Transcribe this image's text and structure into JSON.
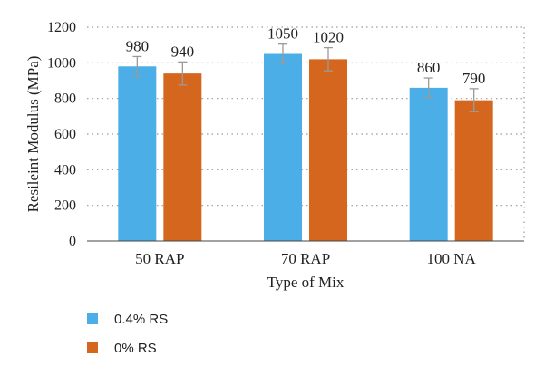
{
  "chart_data": {
    "type": "bar",
    "categories": [
      "50 RAP",
      "70 RAP",
      "100 NA"
    ],
    "series": [
      {
        "name": "0.4% RS",
        "color": "#4BAEE6",
        "values": [
          980,
          1050,
          860
        ],
        "labels": [
          "980",
          "1050",
          "860"
        ],
        "errors": [
          55,
          55,
          55
        ]
      },
      {
        "name": "0% RS",
        "color": "#D4661E",
        "values": [
          940,
          1020,
          790
        ],
        "labels": [
          "940",
          "1020",
          "790"
        ],
        "errors": [
          65,
          65,
          65
        ]
      }
    ],
    "xlabel": "Type of Mix",
    "ylabel": "Resileint Modulus (MPa)",
    "ylim": [
      0,
      1200
    ],
    "yticks": [
      "0",
      "200",
      "400",
      "600",
      "800",
      "1000",
      "1200"
    ],
    "grid": "horizontal dotted",
    "legend_position": "bottom-left"
  }
}
